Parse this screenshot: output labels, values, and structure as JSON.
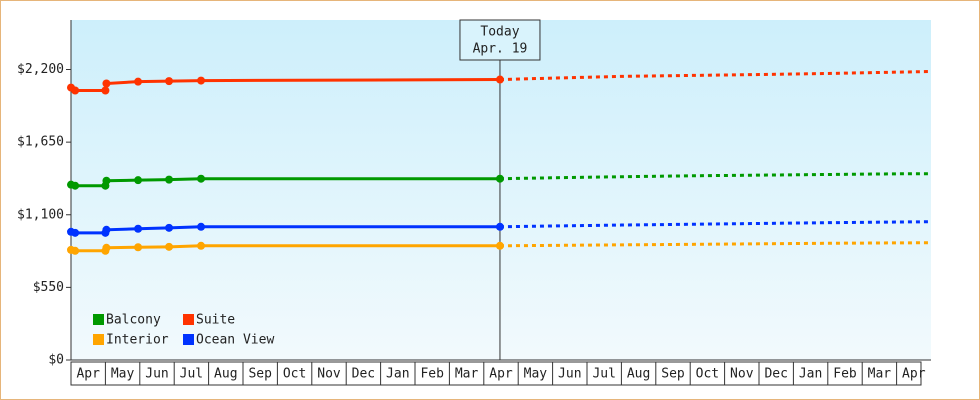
{
  "chart_data": {
    "type": "line",
    "categories": [
      "Apr",
      "May",
      "Jun",
      "Jul",
      "Aug",
      "Sep",
      "Oct",
      "Nov",
      "Dec",
      "Jan",
      "Feb",
      "Mar",
      "Apr",
      "May",
      "Jun",
      "Jul",
      "Aug",
      "Sep",
      "Oct",
      "Nov",
      "Dec",
      "Jan",
      "Feb",
      "Mar",
      "Apr"
    ],
    "xlim": [
      0,
      25
    ],
    "ylim": [
      0,
      2575
    ],
    "yticks": [
      {
        "value": 0,
        "label": "$0"
      },
      {
        "value": 550,
        "label": "$550"
      },
      {
        "value": 1100,
        "label": "$1,100"
      },
      {
        "value": 1650,
        "label": "$1,650"
      },
      {
        "value": 2200,
        "label": "$2,200"
      }
    ],
    "x": [
      0,
      0.12,
      1.0,
      1.03,
      1.95,
      2.85,
      3.78,
      12.47
    ],
    "forecast_x": [
      12.47,
      14,
      16,
      18,
      20,
      22,
      24,
      25
    ],
    "series": [
      {
        "name": "Balcony",
        "color": "#009900",
        "values": [
          1328,
          1320,
          1320,
          1358,
          1362,
          1366,
          1373,
          1373
        ],
        "forecast": [
          1373,
          1380,
          1388,
          1395,
          1400,
          1405,
          1410,
          1411
        ]
      },
      {
        "name": "Suite",
        "color": "#ff3300",
        "values": [
          2063,
          2041,
          2041,
          2094,
          2108,
          2112,
          2116,
          2124
        ],
        "forecast": [
          2124,
          2135,
          2148,
          2155,
          2162,
          2170,
          2180,
          2185
        ]
      },
      {
        "name": "Interior",
        "color": "#ffa500",
        "values": [
          834,
          827,
          827,
          850,
          854,
          857,
          865,
          865
        ],
        "forecast": [
          865,
          868,
          872,
          876,
          880,
          884,
          887,
          888
        ]
      },
      {
        "name": "Ocean View",
        "color": "#0033ff",
        "values": [
          971,
          963,
          963,
          986,
          994,
          1001,
          1009,
          1009
        ],
        "forecast": [
          1009,
          1015,
          1022,
          1028,
          1034,
          1040,
          1045,
          1047
        ]
      }
    ],
    "annotation": {
      "title": "Today",
      "date": "Apr. 19",
      "x": 12.47
    }
  }
}
